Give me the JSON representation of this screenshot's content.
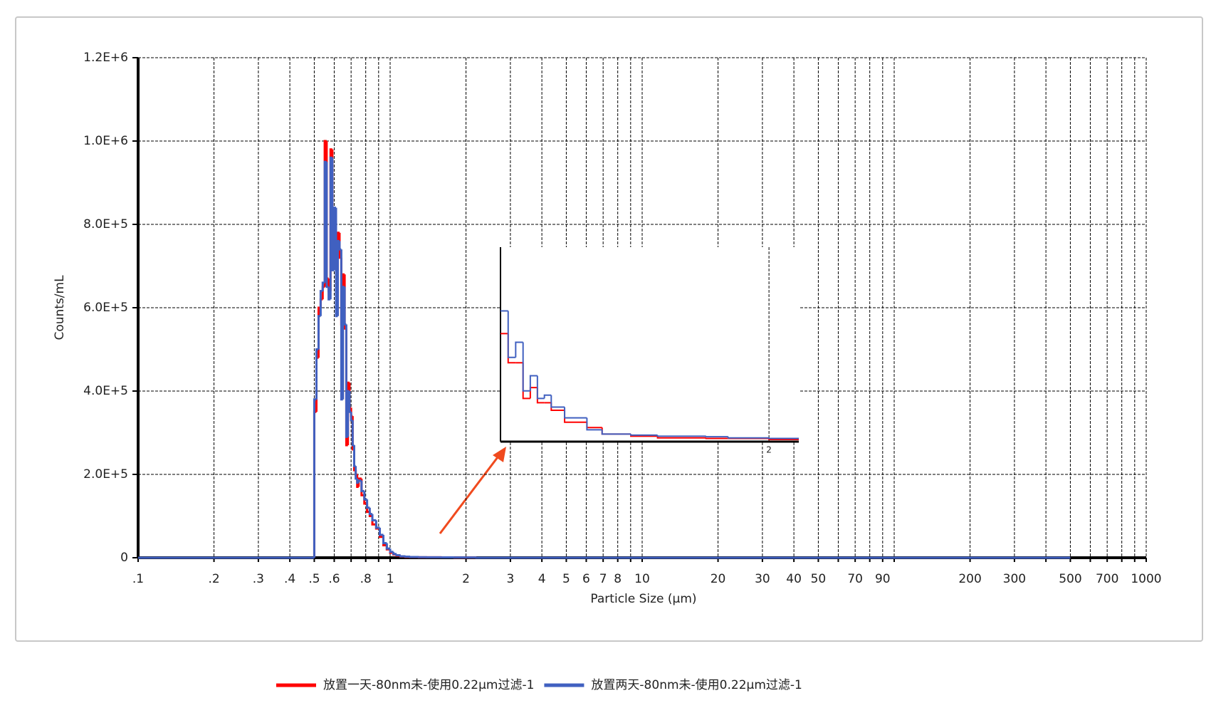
{
  "chart_data": [
    {
      "type": "line",
      "step": true,
      "x_label": "Particle Size (µm)",
      "y_label": "Counts/mL",
      "log_x": true,
      "grid": true,
      "minor_grid": true,
      "legend": "bottom",
      "xlim": [
        0.1,
        1000
      ],
      "ylim": [
        0,
        1200000
      ],
      "xticks": [
        {
          "value": 0.1,
          "label": ".1"
        },
        {
          "value": 0.2,
          "label": ".2"
        },
        {
          "value": 0.3,
          "label": ".3"
        },
        {
          "value": 0.4,
          "label": ".4"
        },
        {
          "value": 0.5,
          "label": ".5"
        },
        {
          "value": 0.6,
          "label": ".6"
        },
        {
          "value": 0.8,
          "label": ".8"
        },
        1,
        2,
        3,
        4,
        5,
        6,
        7,
        8,
        10,
        20,
        30,
        40,
        50,
        70,
        90,
        200,
        300,
        500,
        700,
        1000
      ],
      "yticks": [
        0,
        {
          "value": 200000,
          "label": "2.0E+5"
        },
        {
          "value": 400000,
          "label": "4.0E+5"
        },
        {
          "value": 600000,
          "label": "6.0E+5"
        },
        {
          "value": 800000,
          "label": "8.0E+5"
        },
        {
          "value": 1000000,
          "label": "1.0E+6"
        },
        {
          "value": 1200000,
          "label": "1.2E+6"
        }
      ],
      "x": [
        0.1,
        0.5,
        0.51,
        0.52,
        0.53,
        0.54,
        0.55,
        0.56,
        0.57,
        0.58,
        0.59,
        0.6,
        0.61,
        0.62,
        0.63,
        0.64,
        0.65,
        0.66,
        0.67,
        0.68,
        0.69,
        0.7,
        0.71,
        0.72,
        0.73,
        0.74,
        0.75,
        0.77,
        0.79,
        0.81,
        0.83,
        0.85,
        0.88,
        0.91,
        0.94,
        0.97,
        1.0,
        1.03,
        1.06,
        1.1,
        1.15,
        1.2,
        1.3,
        1.4,
        1.6,
        1.8,
        2.0,
        2.2,
        500
      ],
      "series": [
        {
          "name": "放置一天-80nm未-使用0.22μm过滤-1",
          "color": "#ff0000",
          "values": [
            0,
            350000,
            480000,
            600000,
            620000,
            650000,
            1000000,
            670000,
            640000,
            980000,
            700000,
            830000,
            600000,
            780000,
            720000,
            560000,
            680000,
            550000,
            270000,
            420000,
            360000,
            340000,
            260000,
            210000,
            200000,
            170000,
            190000,
            150000,
            130000,
            110000,
            100000,
            80000,
            70000,
            50000,
            30000,
            20000,
            12000,
            8000,
            5000,
            3000,
            2000,
            1500,
            1000,
            1000,
            800,
            500,
            500,
            0,
            0
          ]
        },
        {
          "name": "放置两天-80nm未-使用0.22μm过滤-1",
          "color": "#4060c0",
          "values": [
            0,
            380000,
            500000,
            580000,
            640000,
            660000,
            950000,
            650000,
            620000,
            960000,
            690000,
            840000,
            580000,
            760000,
            740000,
            380000,
            650000,
            560000,
            290000,
            400000,
            350000,
            330000,
            270000,
            220000,
            190000,
            180000,
            185000,
            160000,
            140000,
            120000,
            105000,
            90000,
            72000,
            55000,
            35000,
            22000,
            14000,
            9000,
            6000,
            3500,
            2500,
            1800,
            1200,
            1100,
            900,
            600,
            600,
            0,
            0
          ]
        }
      ]
    },
    {
      "type": "line",
      "step": true,
      "log_x": true,
      "grid": true,
      "xlim": [
        1,
        2.16
      ],
      "ylim": [
        0,
        18000
      ],
      "xticks": [
        2
      ],
      "x": [
        1.0,
        1.02,
        1.04,
        1.06,
        1.08,
        1.1,
        1.12,
        1.14,
        1.18,
        1.25,
        1.3,
        1.4,
        1.5,
        1.7,
        1.8,
        2.0,
        2.16
      ],
      "series": [
        {
          "color": "#ff0000",
          "values": [
            10000,
            7300,
            7300,
            4000,
            5000,
            3600,
            3600,
            2900,
            1800,
            1300,
            700,
            500,
            350,
            300,
            300,
            200,
            200
          ]
        },
        {
          "color": "#4060c0",
          "values": [
            12100,
            7800,
            9200,
            4700,
            6100,
            4000,
            4300,
            3200,
            2200,
            1100,
            700,
            600,
            500,
            450,
            350,
            300,
            300
          ]
        }
      ]
    }
  ]
}
